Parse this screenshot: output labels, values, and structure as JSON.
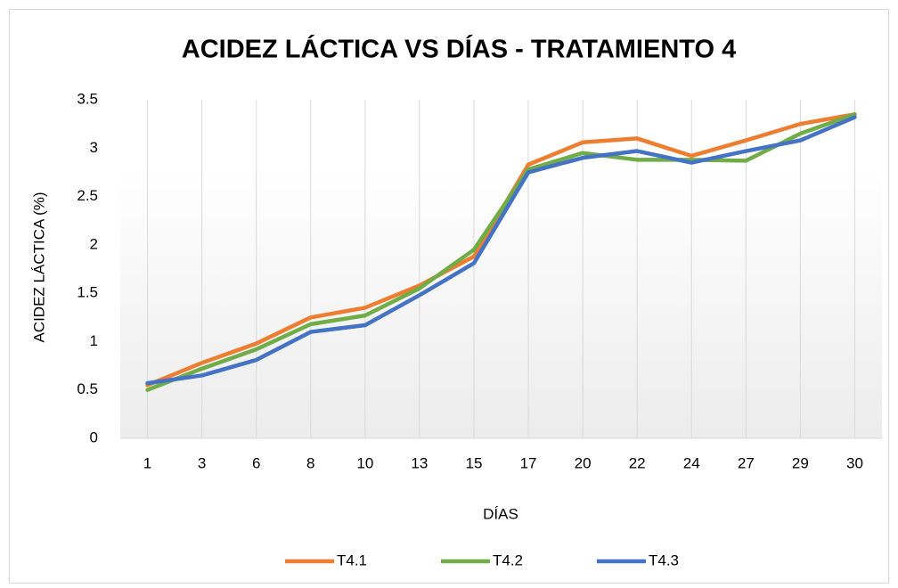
{
  "chart_data": {
    "type": "line",
    "title": "ACIDEZ LÁCTICA VS DÍAS - TRATAMIENTO 4",
    "x_label": "DÍAS",
    "y_label": "ACIDEZ LÁCTICA (%)",
    "categories": [
      "1",
      "3",
      "6",
      "8",
      "10",
      "13",
      "15",
      "17",
      "20",
      "22",
      "24",
      "27",
      "29",
      "30"
    ],
    "series": [
      {
        "name": "T4.1",
        "color": "#ed7d31",
        "values": [
          0.55,
          0.78,
          0.98,
          1.25,
          1.35,
          1.58,
          1.88,
          2.83,
          3.06,
          3.1,
          2.92,
          3.08,
          3.25,
          3.35
        ]
      },
      {
        "name": "T4.2",
        "color": "#70ad47",
        "values": [
          0.5,
          0.72,
          0.92,
          1.18,
          1.27,
          1.55,
          1.95,
          2.78,
          2.95,
          2.88,
          2.88,
          2.87,
          3.15,
          3.35
        ]
      },
      {
        "name": "T4.3",
        "color": "#4472c4",
        "values": [
          0.57,
          0.65,
          0.81,
          1.1,
          1.17,
          1.48,
          1.81,
          2.75,
          2.9,
          2.97,
          2.85,
          2.97,
          3.08,
          3.32
        ]
      }
    ],
    "ylim": [
      0,
      3.5
    ],
    "yticks": [
      0,
      0.5,
      1,
      1.5,
      2,
      2.5,
      3,
      3.5
    ],
    "grid": true,
    "legend": "bottom"
  }
}
